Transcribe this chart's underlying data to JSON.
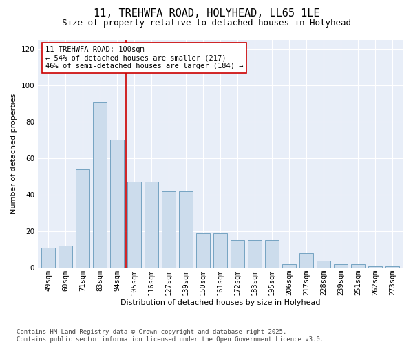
{
  "title_line1": "11, TREHWFA ROAD, HOLYHEAD, LL65 1LE",
  "title_line2": "Size of property relative to detached houses in Holyhead",
  "xlabel": "Distribution of detached houses by size in Holyhead",
  "ylabel": "Number of detached properties",
  "categories": [
    "49sqm",
    "60sqm",
    "71sqm",
    "83sqm",
    "94sqm",
    "105sqm",
    "116sqm",
    "127sqm",
    "139sqm",
    "150sqm",
    "161sqm",
    "172sqm",
    "183sqm",
    "195sqm",
    "206sqm",
    "217sqm",
    "228sqm",
    "239sqm",
    "251sqm",
    "262sqm",
    "273sqm"
  ],
  "values": [
    11,
    12,
    54,
    91,
    70,
    47,
    47,
    42,
    42,
    19,
    19,
    15,
    15,
    15,
    2,
    8,
    4,
    2,
    2,
    1,
    1
  ],
  "bar_color": "#ccdcec",
  "bar_edge_color": "#6699bb",
  "vline_x_index": 4.5,
  "vline_color": "#cc0000",
  "annotation_line1": "11 TREHWFA ROAD: 100sqm",
  "annotation_line2": "← 54% of detached houses are smaller (217)",
  "annotation_line3": "46% of semi-detached houses are larger (184) →",
  "annotation_box_facecolor": "white",
  "annotation_box_edgecolor": "#cc0000",
  "background_color": "#e8eef8",
  "ylim": [
    0,
    125
  ],
  "yticks": [
    0,
    20,
    40,
    60,
    80,
    100,
    120
  ],
  "footer_line1": "Contains HM Land Registry data © Crown copyright and database right 2025.",
  "footer_line2": "Contains public sector information licensed under the Open Government Licence v3.0.",
  "title_fontsize": 11,
  "subtitle_fontsize": 9,
  "axis_label_fontsize": 8,
  "tick_fontsize": 7.5,
  "annotation_fontsize": 7.5,
  "footer_fontsize": 6.5,
  "ylabel_fontsize": 8
}
